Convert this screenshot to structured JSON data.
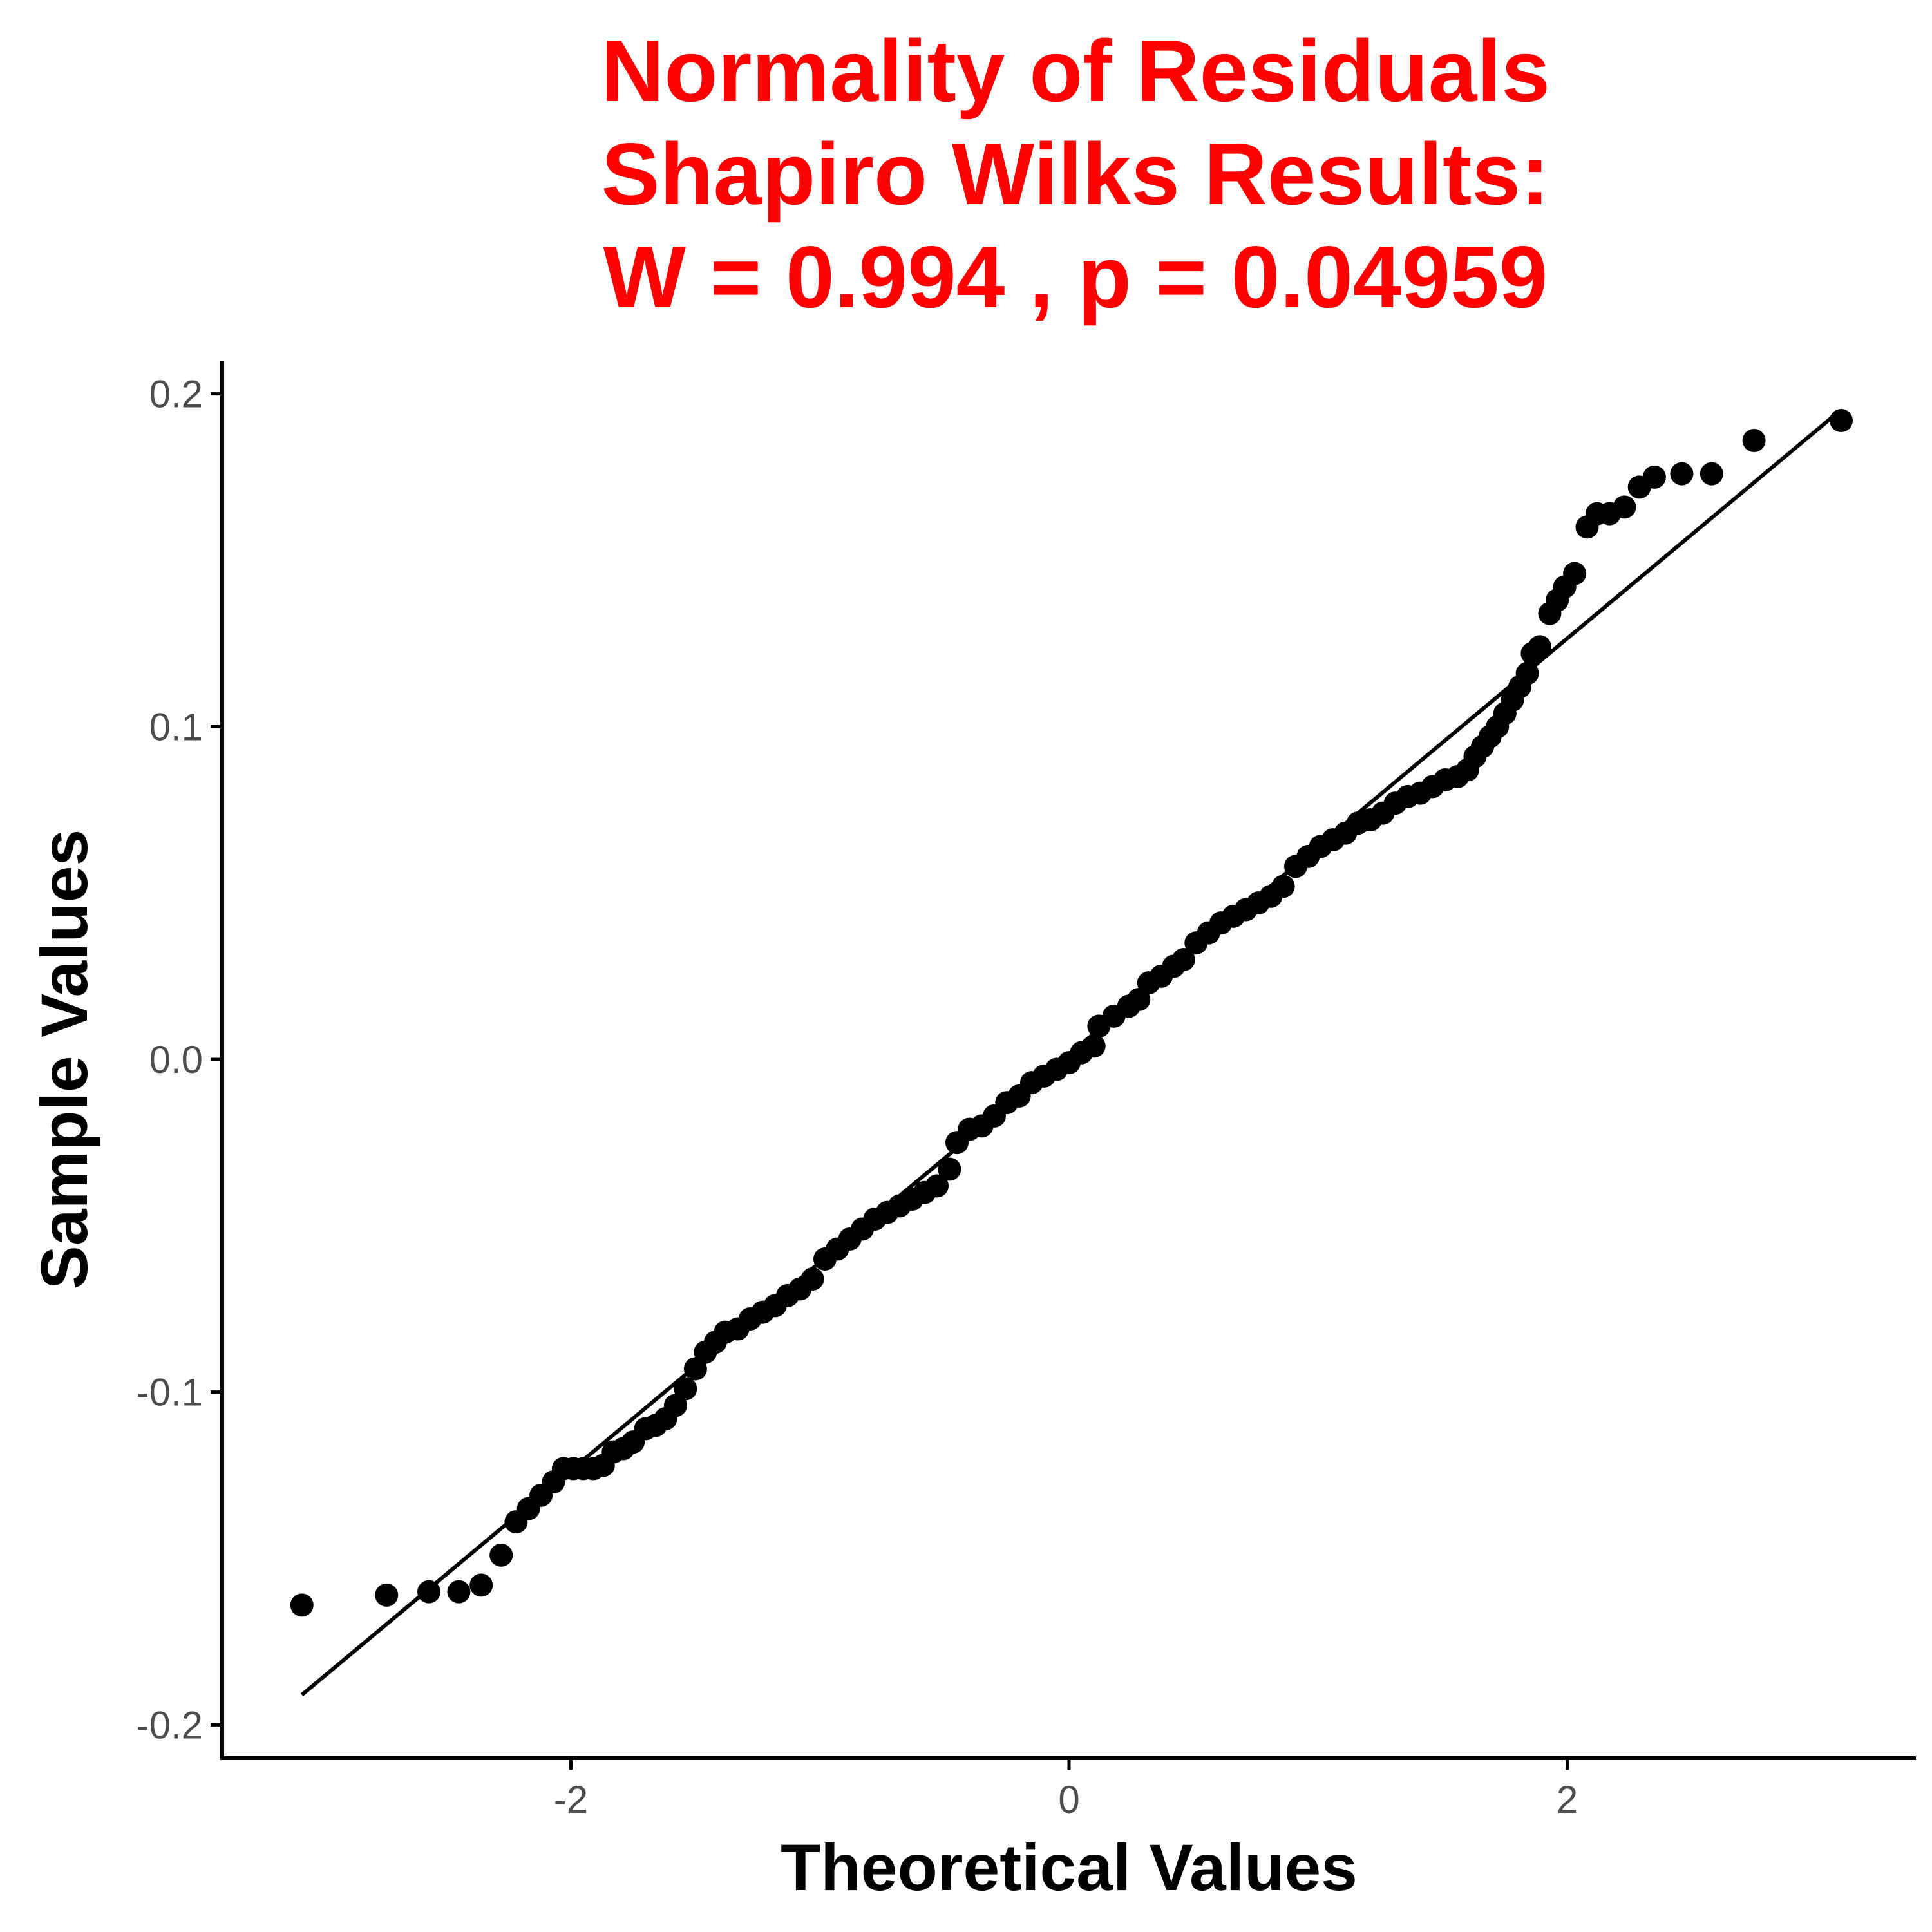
{
  "title_lines": [
    "Normality of Residuals",
    "Shapiro Wilks Results:",
    "W =  0.994 , p =  0.04959"
  ],
  "colors": {
    "title": "#ff0000",
    "points": "#000000",
    "line": "#000000",
    "axis": "#000000",
    "tick_label": "#4d4d4d"
  },
  "chart_data": {
    "type": "scatter",
    "title": "Normality of Residuals Shapiro Wilks Results: W =  0.994 , p =  0.04959",
    "xlabel": "Theoretical Values",
    "ylabel": "Sample Values",
    "xlim": [
      -3.4,
      3.4
    ],
    "ylim": [
      -0.21,
      0.21
    ],
    "x_ticks": [
      -2,
      0,
      2
    ],
    "x_tick_labels": [
      "-2",
      "0",
      "2"
    ],
    "y_ticks": [
      -0.2,
      -0.1,
      0.0,
      0.1,
      0.2
    ],
    "y_tick_labels": [
      "-0.2",
      "-0.1",
      "0.0",
      "0.1",
      "0.2"
    ],
    "grid": false,
    "reference_line": {
      "x": [
        -3.08,
        3.08
      ],
      "y": [
        -0.191,
        0.194
      ]
    },
    "series": [
      {
        "points": [
          [
            -3.08,
            -0.164
          ],
          [
            -2.74,
            -0.161
          ],
          [
            -2.57,
            -0.16
          ],
          [
            -2.45,
            -0.16
          ],
          [
            -2.36,
            -0.158
          ],
          [
            -2.28,
            -0.149
          ],
          [
            -2.22,
            -0.139
          ],
          [
            -2.17,
            -0.135
          ],
          [
            -2.12,
            -0.131
          ],
          [
            -2.07,
            -0.127
          ],
          [
            -2.03,
            -0.123
          ],
          [
            -1.99,
            -0.123
          ],
          [
            -1.95,
            -0.123
          ],
          [
            -1.91,
            -0.123
          ],
          [
            -1.87,
            -0.122
          ],
          [
            -1.83,
            -0.118
          ],
          [
            -1.79,
            -0.117
          ],
          [
            -1.75,
            -0.115
          ],
          [
            -1.7,
            -0.111
          ],
          [
            -1.66,
            -0.11
          ],
          [
            -1.62,
            -0.108
          ],
          [
            -1.58,
            -0.104
          ],
          [
            -1.54,
            -0.099
          ],
          [
            -1.5,
            -0.093
          ],
          [
            -1.46,
            -0.088
          ],
          [
            -1.42,
            -0.085
          ],
          [
            -1.38,
            -0.082
          ],
          [
            -1.33,
            -0.081
          ],
          [
            -1.28,
            -0.078
          ],
          [
            -1.23,
            -0.076
          ],
          [
            -1.18,
            -0.074
          ],
          [
            -1.13,
            -0.071
          ],
          [
            -1.08,
            -0.069
          ],
          [
            -1.03,
            -0.066
          ],
          [
            -0.98,
            -0.06
          ],
          [
            -0.93,
            -0.057
          ],
          [
            -0.88,
            -0.054
          ],
          [
            -0.83,
            -0.051
          ],
          [
            -0.78,
            -0.048
          ],
          [
            -0.73,
            -0.046
          ],
          [
            -0.68,
            -0.044
          ],
          [
            -0.63,
            -0.042
          ],
          [
            -0.58,
            -0.04
          ],
          [
            -0.53,
            -0.038
          ],
          [
            -0.48,
            -0.033
          ],
          [
            -0.45,
            -0.025
          ],
          [
            -0.4,
            -0.021
          ],
          [
            -0.35,
            -0.02
          ],
          [
            -0.3,
            -0.017
          ],
          [
            -0.25,
            -0.013
          ],
          [
            -0.2,
            -0.011
          ],
          [
            -0.15,
            -0.007
          ],
          [
            -0.1,
            -0.005
          ],
          [
            -0.05,
            -0.003
          ],
          [
            0.0,
            -0.001
          ],
          [
            0.05,
            0.002
          ],
          [
            0.1,
            0.004
          ],
          [
            0.12,
            0.01
          ],
          [
            0.18,
            0.013
          ],
          [
            0.24,
            0.016
          ],
          [
            0.28,
            0.018
          ],
          [
            0.32,
            0.023
          ],
          [
            0.37,
            0.025
          ],
          [
            0.42,
            0.028
          ],
          [
            0.46,
            0.03
          ],
          [
            0.51,
            0.035
          ],
          [
            0.56,
            0.038
          ],
          [
            0.61,
            0.041
          ],
          [
            0.66,
            0.043
          ],
          [
            0.71,
            0.045
          ],
          [
            0.76,
            0.047
          ],
          [
            0.81,
            0.049
          ],
          [
            0.86,
            0.052
          ],
          [
            0.91,
            0.058
          ],
          [
            0.96,
            0.061
          ],
          [
            1.01,
            0.064
          ],
          [
            1.06,
            0.066
          ],
          [
            1.11,
            0.068
          ],
          [
            1.16,
            0.071
          ],
          [
            1.21,
            0.072
          ],
          [
            1.26,
            0.074
          ],
          [
            1.31,
            0.077
          ],
          [
            1.36,
            0.079
          ],
          [
            1.41,
            0.08
          ],
          [
            1.46,
            0.082
          ],
          [
            1.51,
            0.084
          ],
          [
            1.56,
            0.085
          ],
          [
            1.6,
            0.087
          ],
          [
            1.63,
            0.091
          ],
          [
            1.66,
            0.094
          ],
          [
            1.69,
            0.097
          ],
          [
            1.72,
            0.1
          ],
          [
            1.75,
            0.104
          ],
          [
            1.78,
            0.108
          ],
          [
            1.81,
            0.112
          ],
          [
            1.84,
            0.116
          ],
          [
            1.86,
            0.122
          ],
          [
            1.89,
            0.124
          ],
          [
            1.93,
            0.134
          ],
          [
            1.96,
            0.138
          ],
          [
            1.99,
            0.142
          ],
          [
            2.03,
            0.146
          ],
          [
            2.08,
            0.16
          ],
          [
            2.12,
            0.164
          ],
          [
            2.17,
            0.164
          ],
          [
            2.23,
            0.166
          ],
          [
            2.29,
            0.172
          ],
          [
            2.35,
            0.175
          ],
          [
            2.46,
            0.176
          ],
          [
            2.58,
            0.176
          ],
          [
            2.75,
            0.186
          ],
          [
            3.1,
            0.192
          ]
        ]
      }
    ]
  }
}
